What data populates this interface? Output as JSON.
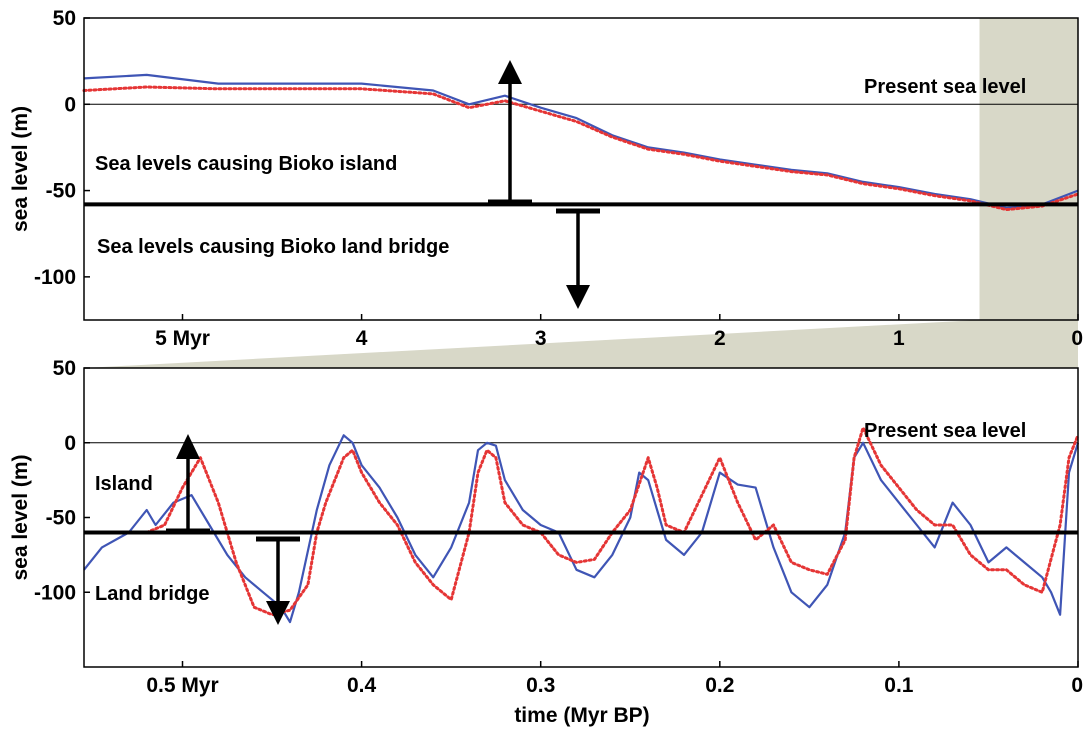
{
  "chart_data": [
    {
      "type": "line",
      "panel": "top",
      "xlabel": "",
      "ylabel": "sea level (m)",
      "x_unit": "Myr BP",
      "xlim": [
        5.55,
        0
      ],
      "ylim": [
        -125,
        50
      ],
      "x_ticks": [
        {
          "value": 5,
          "label": "5 Myr"
        },
        {
          "value": 4,
          "label": "4"
        },
        {
          "value": 3,
          "label": "3"
        },
        {
          "value": 2,
          "label": "2"
        },
        {
          "value": 1,
          "label": "1"
        },
        {
          "value": 0,
          "label": "0"
        }
      ],
      "y_ticks": [
        {
          "value": 50,
          "label": "50"
        },
        {
          "value": 0,
          "label": "0"
        },
        {
          "value": -50,
          "label": "-50"
        },
        {
          "value": -100,
          "label": "-100"
        }
      ],
      "reference_lines": [
        {
          "y": 0,
          "style": "thin"
        },
        {
          "y": -58,
          "style": "thick"
        }
      ],
      "highlight_range": [
        0.55,
        0
      ],
      "annotations": {
        "present": "Present sea level",
        "above": "Sea levels causing Bioko island",
        "below": "Sea levels causing Bioko land bridge"
      },
      "series": [
        {
          "color": "#3f55b5",
          "style": "solid",
          "x": [
            5.55,
            5.2,
            4.8,
            4.4,
            4.0,
            3.6,
            3.4,
            3.2,
            3.0,
            2.8,
            2.6,
            2.4,
            2.2,
            2.0,
            1.8,
            1.6,
            1.4,
            1.2,
            1.0,
            0.8,
            0.6,
            0.4,
            0.2,
            0.0
          ],
          "values": [
            15,
            17,
            12,
            12,
            12,
            8,
            0,
            5,
            -2,
            -8,
            -18,
            -25,
            -28,
            -32,
            -35,
            -38,
            -40,
            -45,
            -48,
            -52,
            -55,
            -60,
            -58,
            -50
          ]
        },
        {
          "color": "#e53535",
          "style": "dotted",
          "x": [
            5.55,
            5.2,
            4.8,
            4.4,
            4.0,
            3.6,
            3.4,
            3.2,
            3.0,
            2.8,
            2.6,
            2.4,
            2.2,
            2.0,
            1.8,
            1.6,
            1.4,
            1.2,
            1.0,
            0.8,
            0.6,
            0.4,
            0.2,
            0.0
          ],
          "values": [
            8,
            10,
            9,
            9,
            9,
            6,
            -2,
            2,
            -4,
            -10,
            -19,
            -26,
            -29,
            -33,
            -36,
            -39,
            -41,
            -46,
            -49,
            -53,
            -56,
            -61,
            -59,
            -52
          ]
        }
      ]
    },
    {
      "type": "line",
      "panel": "bottom",
      "xlabel": "time (Myr BP)",
      "ylabel": "sea level (m)",
      "xlim": [
        0.555,
        0
      ],
      "ylim": [
        -150,
        50
      ],
      "x_ticks": [
        {
          "value": 0.5,
          "label": "0.5 Myr"
        },
        {
          "value": 0.4,
          "label": "0.4"
        },
        {
          "value": 0.3,
          "label": "0.3"
        },
        {
          "value": 0.2,
          "label": "0.2"
        },
        {
          "value": 0.1,
          "label": "0.1"
        },
        {
          "value": 0,
          "label": "0"
        }
      ],
      "y_ticks": [
        {
          "value": 50,
          "label": "50"
        },
        {
          "value": 0,
          "label": "0"
        },
        {
          "value": -50,
          "label": "-50"
        },
        {
          "value": -100,
          "label": "-100"
        }
      ],
      "reference_lines": [
        {
          "y": 0,
          "style": "thin"
        },
        {
          "y": -60,
          "style": "thick"
        }
      ],
      "annotations": {
        "present": "Present sea level",
        "above": "Island",
        "below": "Land bridge"
      },
      "series": [
        {
          "color": "#3f55b5",
          "style": "solid",
          "x": [
            0.555,
            0.545,
            0.53,
            0.52,
            0.515,
            0.505,
            0.495,
            0.485,
            0.475,
            0.465,
            0.455,
            0.445,
            0.44,
            0.435,
            0.425,
            0.418,
            0.41,
            0.405,
            0.4,
            0.39,
            0.38,
            0.37,
            0.36,
            0.35,
            0.34,
            0.335,
            0.33,
            0.325,
            0.32,
            0.31,
            0.3,
            0.29,
            0.28,
            0.27,
            0.26,
            0.25,
            0.245,
            0.24,
            0.235,
            0.23,
            0.22,
            0.21,
            0.2,
            0.19,
            0.18,
            0.17,
            0.16,
            0.15,
            0.14,
            0.13,
            0.125,
            0.12,
            0.11,
            0.1,
            0.09,
            0.08,
            0.07,
            0.06,
            0.05,
            0.04,
            0.03,
            0.02,
            0.015,
            0.01,
            0.005,
            0.0
          ],
          "values": [
            -85,
            -70,
            -60,
            -45,
            -55,
            -40,
            -35,
            -55,
            -75,
            -90,
            -100,
            -110,
            -120,
            -100,
            -45,
            -15,
            5,
            0,
            -15,
            -30,
            -50,
            -75,
            -90,
            -70,
            -40,
            -5,
            0,
            -2,
            -25,
            -45,
            -55,
            -60,
            -85,
            -90,
            -75,
            -50,
            -20,
            -25,
            -45,
            -65,
            -75,
            -60,
            -20,
            -28,
            -30,
            -70,
            -100,
            -110,
            -95,
            -60,
            -10,
            0,
            -25,
            -40,
            -55,
            -70,
            -40,
            -55,
            -80,
            -70,
            -80,
            -90,
            -100,
            -115,
            -20,
            0
          ]
        },
        {
          "color": "#e53535",
          "style": "dotted",
          "x": [
            0.52,
            0.51,
            0.5,
            0.49,
            0.48,
            0.47,
            0.46,
            0.45,
            0.44,
            0.43,
            0.425,
            0.42,
            0.41,
            0.405,
            0.4,
            0.39,
            0.38,
            0.37,
            0.36,
            0.35,
            0.34,
            0.335,
            0.33,
            0.325,
            0.32,
            0.31,
            0.3,
            0.29,
            0.28,
            0.27,
            0.26,
            0.25,
            0.24,
            0.235,
            0.23,
            0.22,
            0.21,
            0.2,
            0.19,
            0.18,
            0.17,
            0.16,
            0.15,
            0.14,
            0.13,
            0.125,
            0.12,
            0.11,
            0.1,
            0.09,
            0.08,
            0.07,
            0.06,
            0.05,
            0.04,
            0.03,
            0.02,
            0.01,
            0.005,
            0.0
          ],
          "values": [
            -60,
            -55,
            -30,
            -10,
            -40,
            -80,
            -110,
            -115,
            -112,
            -95,
            -60,
            -40,
            -10,
            -5,
            -20,
            -40,
            -55,
            -80,
            -95,
            -105,
            -60,
            -20,
            -5,
            -10,
            -40,
            -55,
            -60,
            -75,
            -80,
            -78,
            -60,
            -45,
            -10,
            -30,
            -55,
            -60,
            -35,
            -10,
            -40,
            -65,
            -55,
            -80,
            -85,
            -88,
            -65,
            -10,
            10,
            -15,
            -30,
            -45,
            -55,
            -55,
            -75,
            -85,
            -85,
            -95,
            -100,
            -55,
            -10,
            5
          ]
        }
      ]
    }
  ]
}
